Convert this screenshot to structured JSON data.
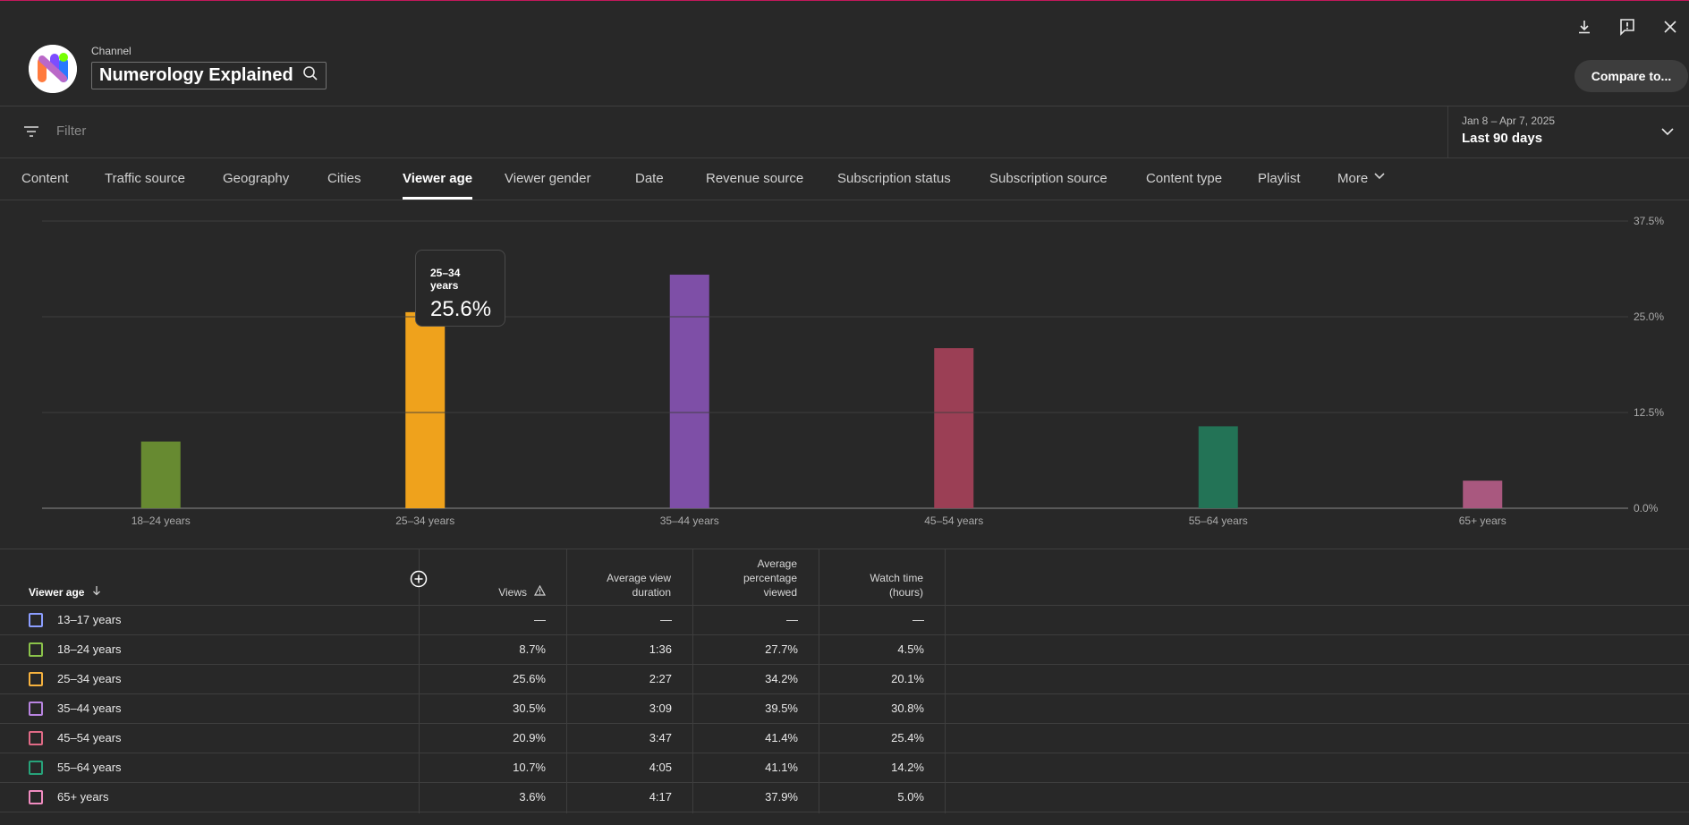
{
  "header": {
    "channel_label": "Channel",
    "channel_name": "Numerology Explained",
    "compare_label": "Compare to..."
  },
  "filter": {
    "placeholder": "Filter",
    "date_range": "Jan 8 – Apr 7, 2025",
    "date_label": "Last 90 days"
  },
  "tabs": [
    {
      "label": "Content"
    },
    {
      "label": "Traffic source"
    },
    {
      "label": "Geography"
    },
    {
      "label": "Cities"
    },
    {
      "label": "Viewer age"
    },
    {
      "label": "Viewer gender"
    },
    {
      "label": "Date"
    },
    {
      "label": "Revenue source"
    },
    {
      "label": "Subscription status"
    },
    {
      "label": "Subscription source"
    },
    {
      "label": "Content type"
    },
    {
      "label": "Playlist"
    },
    {
      "label": "More"
    }
  ],
  "active_tab": "Viewer age",
  "tooltip": {
    "category": "25–34 years",
    "value": "25.6%"
  },
  "chart_data": {
    "type": "bar",
    "categories": [
      "18–24 years",
      "25–34 years",
      "35–44 years",
      "45–54 years",
      "55–64 years",
      "65+ years"
    ],
    "values": [
      8.7,
      25.6,
      30.5,
      20.9,
      10.7,
      3.6
    ],
    "colors": [
      "#678a31",
      "#efa21c",
      "#7e4fa7",
      "#9b3f55",
      "#237356",
      "#a9587f"
    ],
    "y_ticks": [
      "0.0%",
      "12.5%",
      "25.0%",
      "37.5%"
    ],
    "ylim": [
      0,
      37.5
    ],
    "grid": true
  },
  "table": {
    "headers": {
      "dimension": "Viewer age",
      "views": "Views",
      "avg_view_duration": [
        "Average view",
        "duration"
      ],
      "avg_pct_viewed": [
        "Average",
        "percentage",
        "viewed"
      ],
      "watch_time": [
        "Watch time",
        "(hours)"
      ]
    },
    "rows": [
      {
        "label": "13–17 years",
        "color": "#8c9eff",
        "views": "—",
        "duration": "—",
        "pct": "—",
        "watch": "—"
      },
      {
        "label": "18–24 years",
        "color": "#8bc34a",
        "views": "8.7%",
        "duration": "1:36",
        "pct": "27.7%",
        "watch": "4.5%"
      },
      {
        "label": "25–34 years",
        "color": "#f6b23e",
        "views": "25.6%",
        "duration": "2:27",
        "pct": "34.2%",
        "watch": "20.1%"
      },
      {
        "label": "35–44 years",
        "color": "#b884e0",
        "views": "30.5%",
        "duration": "3:09",
        "pct": "39.5%",
        "watch": "30.8%"
      },
      {
        "label": "45–54 years",
        "color": "#e06a86",
        "views": "20.9%",
        "duration": "3:47",
        "pct": "41.4%",
        "watch": "25.4%"
      },
      {
        "label": "55–64 years",
        "color": "#27a37a",
        "views": "10.7%",
        "duration": "4:05",
        "pct": "41.1%",
        "watch": "14.2%"
      },
      {
        "label": "65+ years",
        "color": "#f08cc0",
        "views": "3.6%",
        "duration": "4:17",
        "pct": "37.9%",
        "watch": "5.0%"
      }
    ]
  }
}
